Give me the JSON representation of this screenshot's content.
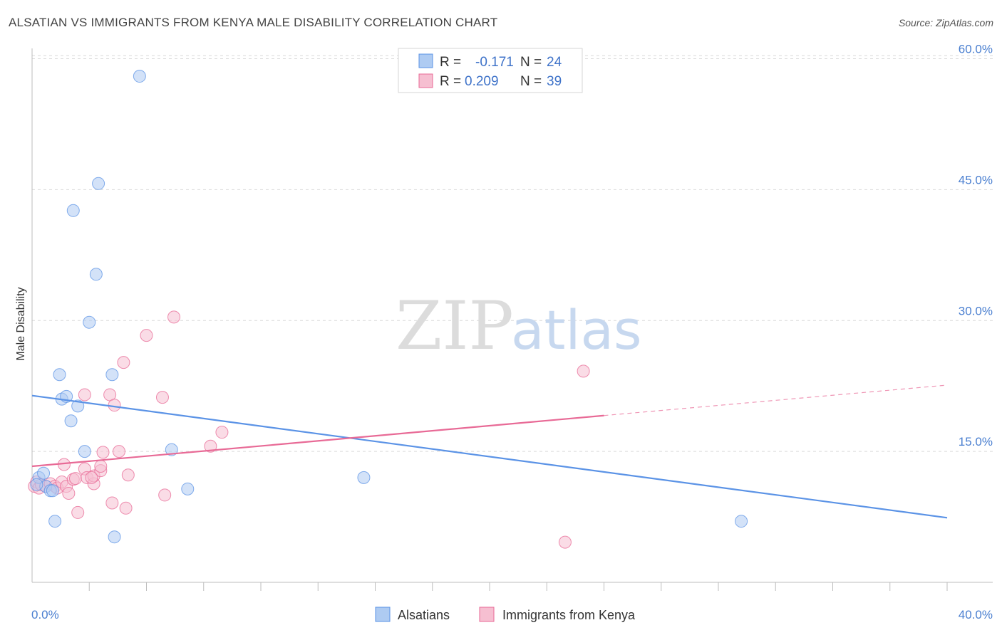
{
  "header": {
    "title": "ALSATIAN VS IMMIGRANTS FROM KENYA MALE DISABILITY CORRELATION CHART",
    "source": "Source: ZipAtlas.com"
  },
  "watermark": {
    "zip": "ZIP",
    "atlas": "atlas"
  },
  "chart_data": {
    "type": "scatter",
    "title": "ALSATIAN VS IMMIGRANTS FROM KENYA MALE DISABILITY CORRELATION CHART",
    "xlabel": "",
    "ylabel": "Male Disability",
    "xlim": [
      0,
      40
    ],
    "ylim": [
      0,
      62
    ],
    "x_tick_labels": {
      "min": "0.0%",
      "max": "40.0%"
    },
    "y_ticks": [
      15,
      30,
      45,
      60
    ],
    "y_tick_labels": [
      "15.0%",
      "30.0%",
      "45.0%",
      "60.0%"
    ],
    "grid": true,
    "legend_position": "top-center",
    "colors": {
      "alsatians": "#5b93e6",
      "alsatians_fill": "#aecbf2",
      "kenya": "#e86a96",
      "kenya_fill": "#f6bfd1",
      "value_text": "#3f73c9",
      "grid": "#d9d9d9"
    },
    "series": [
      {
        "name": "Alsatians",
        "r_label": "R = ",
        "r_value": "-0.171",
        "n_label": "N = ",
        "n_value": "24",
        "trend": {
          "x0": 0,
          "y0": 21.4,
          "x1": 40,
          "y1": 7.4,
          "dashed_from": null
        },
        "points": [
          [
            0.3,
            12.0
          ],
          [
            0.5,
            12.5
          ],
          [
            0.6,
            11.0
          ],
          [
            0.8,
            10.5
          ],
          [
            0.9,
            10.5
          ],
          [
            1.0,
            7.0
          ],
          [
            1.2,
            23.8
          ],
          [
            1.3,
            21.0
          ],
          [
            1.5,
            21.3
          ],
          [
            1.7,
            18.5
          ],
          [
            1.8,
            42.6
          ],
          [
            2.0,
            20.2
          ],
          [
            2.3,
            15.0
          ],
          [
            2.5,
            29.8
          ],
          [
            2.8,
            35.3
          ],
          [
            2.9,
            45.7
          ],
          [
            3.5,
            23.8
          ],
          [
            3.6,
            5.2
          ],
          [
            4.7,
            58.0
          ],
          [
            6.1,
            15.2
          ],
          [
            6.8,
            10.7
          ],
          [
            14.5,
            12.0
          ],
          [
            31.0,
            7.0
          ],
          [
            0.2,
            11.2
          ]
        ]
      },
      {
        "name": "Immigrants from Kenya",
        "r_label": "R = ",
        "r_value": "0.209",
        "n_label": "N = ",
        "n_value": "39",
        "trend": {
          "x0": 0,
          "y0": 13.3,
          "x1": 40,
          "y1": 22.6,
          "dashed_from": 25
        },
        "points": [
          [
            0.1,
            11.0
          ],
          [
            0.2,
            11.5
          ],
          [
            0.3,
            10.8
          ],
          [
            0.4,
            11.2
          ],
          [
            0.6,
            11.0
          ],
          [
            0.8,
            11.3
          ],
          [
            1.0,
            11.0
          ],
          [
            1.1,
            10.8
          ],
          [
            1.3,
            11.5
          ],
          [
            1.4,
            13.5
          ],
          [
            1.5,
            11.0
          ],
          [
            1.6,
            10.2
          ],
          [
            1.8,
            11.8
          ],
          [
            1.9,
            11.9
          ],
          [
            2.0,
            8.0
          ],
          [
            2.3,
            21.5
          ],
          [
            2.3,
            13.0
          ],
          [
            2.4,
            12.0
          ],
          [
            2.7,
            11.3
          ],
          [
            2.7,
            12.2
          ],
          [
            3.0,
            12.8
          ],
          [
            3.0,
            13.3
          ],
          [
            3.1,
            14.9
          ],
          [
            3.4,
            21.5
          ],
          [
            3.5,
            9.1
          ],
          [
            3.6,
            20.3
          ],
          [
            3.8,
            15.0
          ],
          [
            4.0,
            25.2
          ],
          [
            4.1,
            8.5
          ],
          [
            4.2,
            12.3
          ],
          [
            5.0,
            28.3
          ],
          [
            5.7,
            21.2
          ],
          [
            5.8,
            10.0
          ],
          [
            6.2,
            30.4
          ],
          [
            7.8,
            15.6
          ],
          [
            8.3,
            17.2
          ],
          [
            24.1,
            24.2
          ],
          [
            23.3,
            4.6
          ],
          [
            2.6,
            12.0
          ]
        ]
      }
    ]
  }
}
